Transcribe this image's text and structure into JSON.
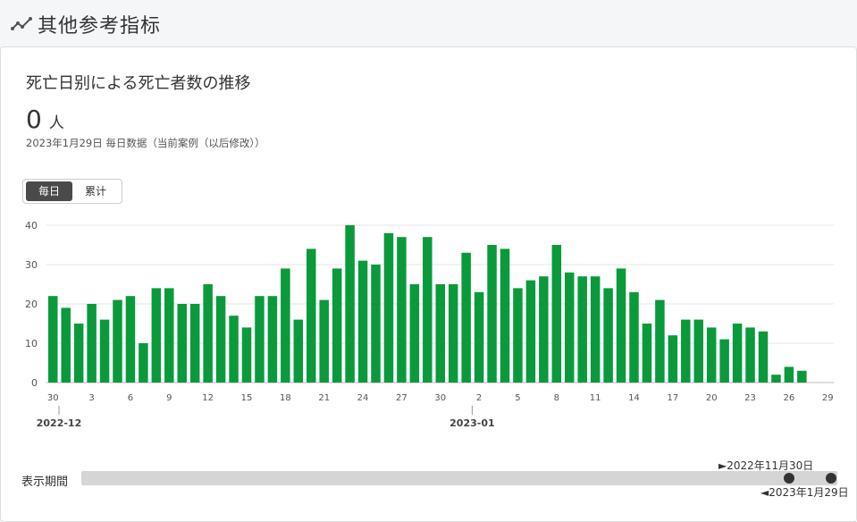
{
  "section": {
    "title": "其他参考指标",
    "icon": "trend-line-icon"
  },
  "card": {
    "title": "死亡日别による死亡者数の推移",
    "value": "0",
    "unit": "人",
    "note": "2023年1月29日 毎日数据（当前案例（以后修改））"
  },
  "toggle": {
    "daily": "毎日",
    "cumulative": "累计",
    "selected": "daily"
  },
  "chart_data": {
    "type": "bar",
    "title": "死亡日别による死亡者数の推移",
    "xlabel": "",
    "ylabel": "",
    "ylim": [
      0,
      40
    ],
    "yticks": [
      0,
      10,
      20,
      30,
      40
    ],
    "grid": true,
    "color": "#0a9a3c",
    "values": [
      22,
      19,
      15,
      20,
      16,
      21,
      22,
      10,
      24,
      24,
      20,
      20,
      25,
      22,
      17,
      14,
      22,
      22,
      29,
      16,
      34,
      21,
      29,
      40,
      31,
      30,
      38,
      37,
      25,
      37,
      25,
      25,
      33,
      23,
      35,
      34,
      24,
      26,
      27,
      35,
      28,
      27,
      27,
      24,
      29,
      23,
      15,
      21,
      12,
      16,
      16,
      14,
      11,
      15,
      14,
      13,
      2,
      4,
      3,
      null,
      null
    ],
    "tick_labels": [
      "30",
      "3",
      "6",
      "9",
      "12",
      "15",
      "18",
      "21",
      "24",
      "27",
      "30",
      "2",
      "5",
      "8",
      "11",
      "14",
      "17",
      "20",
      "23",
      "26",
      "29"
    ],
    "month_labels": [
      "2022-12",
      "2023-01"
    ]
  },
  "period": {
    "label": "表示期間",
    "start": "►2022年11月30日",
    "end": "◄2023年1月29日"
  }
}
